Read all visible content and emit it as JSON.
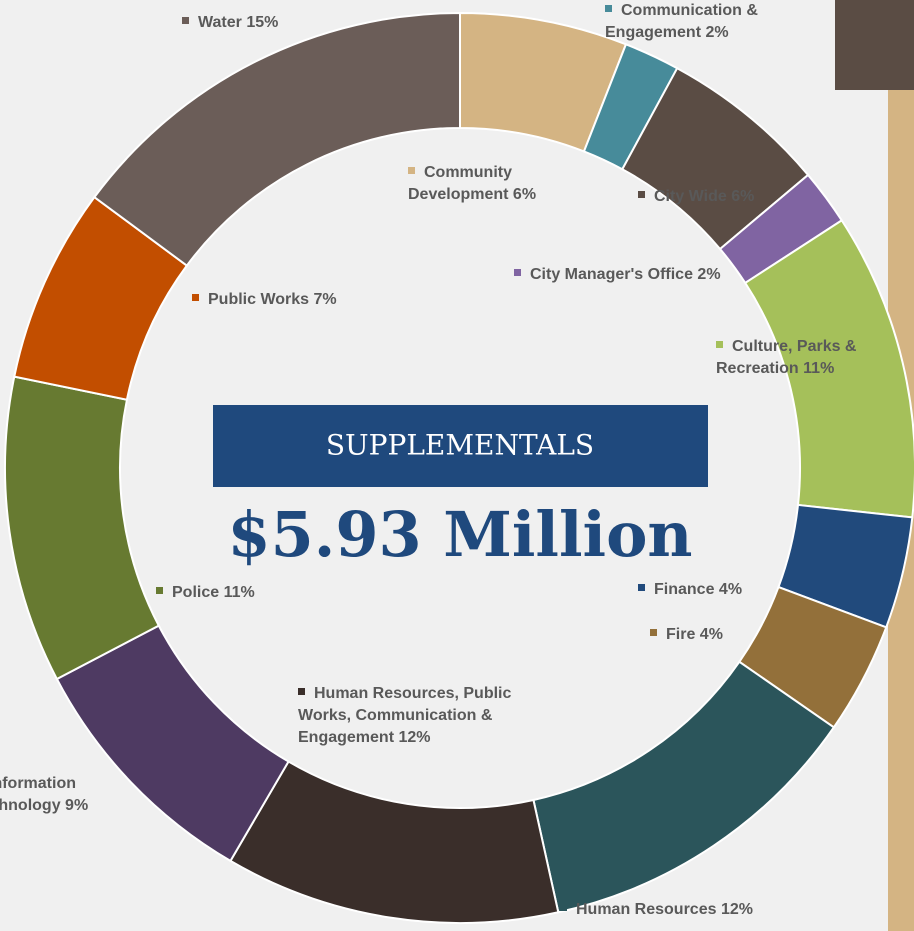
{
  "chart_data": {
    "type": "pie",
    "donut": true,
    "center_title": "SUPPLEMENTALS",
    "center_total": "$5.93 Million",
    "categories": [
      "Community Development",
      "Communication & Engagement",
      "City Wide",
      "City Manager's Office",
      "Culture, Parks & Recreation",
      "Finance",
      "Fire",
      "Human Resources",
      "Human Resources, Public Works, Communication & Engagement",
      "Information Technology",
      "Police",
      "Public Works",
      "Water"
    ],
    "values": [
      6,
      2,
      6,
      2,
      11,
      4,
      4,
      12,
      12,
      9,
      11,
      7,
      15
    ],
    "value_labels": [
      "6%",
      "2%",
      "6%",
      "2%",
      "11%",
      "4%",
      "4%",
      "12%",
      "12%",
      "9%",
      "11%",
      "7%",
      "15%"
    ],
    "colors": [
      "#d4b483",
      "#478b9a",
      "#5a4c44",
      "#8064a2",
      "#a5c05a",
      "#214a7c",
      "#93703a",
      "#2b555b",
      "#3a2e2a",
      "#4e3a62",
      "#677a31",
      "#c24e00",
      "#6b5d58"
    ]
  }
}
